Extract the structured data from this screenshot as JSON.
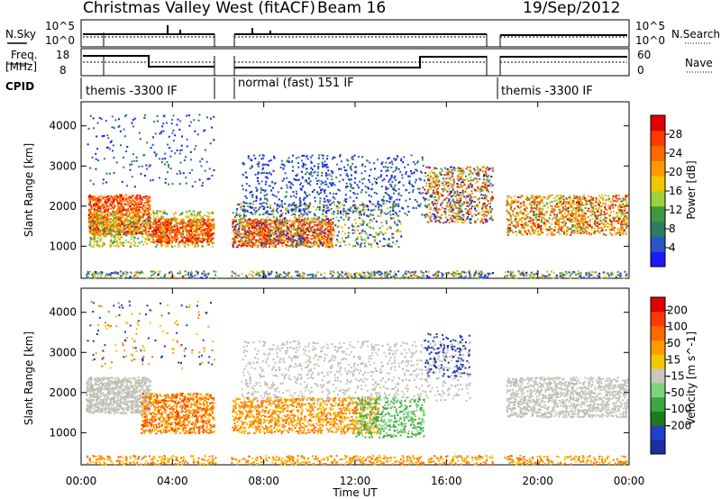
{
  "header": {
    "station": "Christmas Valley West (fitACF)",
    "beam": "Beam 16",
    "date": "19/Sep/2012"
  },
  "top_panels": {
    "nsky_label": "N.Sky",
    "nsearch_label": "N.Search",
    "nsky_ticks": [
      "10^5",
      "10^0"
    ],
    "nsearch_ticks": [
      "10^5",
      "10^0"
    ],
    "freq_label_1": "Freq.",
    "freq_label_2": "[MHz]",
    "freq_ticks": [
      "18",
      "8"
    ],
    "nave_label": "Nave",
    "nave_ticks": [
      "60",
      "0"
    ],
    "cpid_label": "CPID",
    "cpid_segments": [
      {
        "label": "themis -3300 IF",
        "start": 0.0,
        "end": 5.9
      },
      {
        "label": "normal (fast) 151 IF",
        "start": 6.5,
        "end": 18.0
      },
      {
        "label": "themis -3300 IF",
        "start": 18.5,
        "end": 24.0
      }
    ]
  },
  "x_axis": {
    "title": "Time UT",
    "ticks": [
      "00:00",
      "04:00",
      "08:00",
      "12:00",
      "16:00",
      "20:00",
      "00:00"
    ],
    "range_hours": [
      0,
      24
    ]
  },
  "chart_data": [
    {
      "type": "heatmap",
      "ylabel": "Slant Range [km]",
      "yticks": [
        "1000",
        "2000",
        "3000",
        "4000"
      ],
      "ylim": [
        200,
        4600
      ],
      "xlim": [
        0,
        24
      ],
      "colorbar": {
        "label": "Power [dB]",
        "ticks": [
          "4",
          "8",
          "12",
          "16",
          "20",
          "24",
          "28"
        ],
        "colors": [
          "#1a1aff",
          "#2a55c8",
          "#2e7d62",
          "#3c9a3c",
          "#9ad23c",
          "#f0c800",
          "#ff9a00",
          "#ff6a00",
          "#ff3a00",
          "#e00000"
        ]
      }
    },
    {
      "type": "heatmap",
      "ylabel": "Slant Range [km]",
      "yticks": [
        "1000",
        "2000",
        "3000",
        "4000"
      ],
      "ylim": [
        200,
        4600
      ],
      "xlim": [
        0,
        24
      ],
      "colorbar": {
        "label": "Velocity [m s^-1]",
        "ticks": [
          "200",
          "100",
          "50",
          "15",
          "-15",
          "-50",
          "-100",
          "-200"
        ],
        "colors": [
          "#1c2ea0",
          "#2040c8",
          "#1e7a1e",
          "#3ca83c",
          "#7ed27e",
          "#c8c8be",
          "#f0c800",
          "#ff9a00",
          "#ff6a00",
          "#ff3a00",
          "#e00000"
        ]
      }
    }
  ]
}
